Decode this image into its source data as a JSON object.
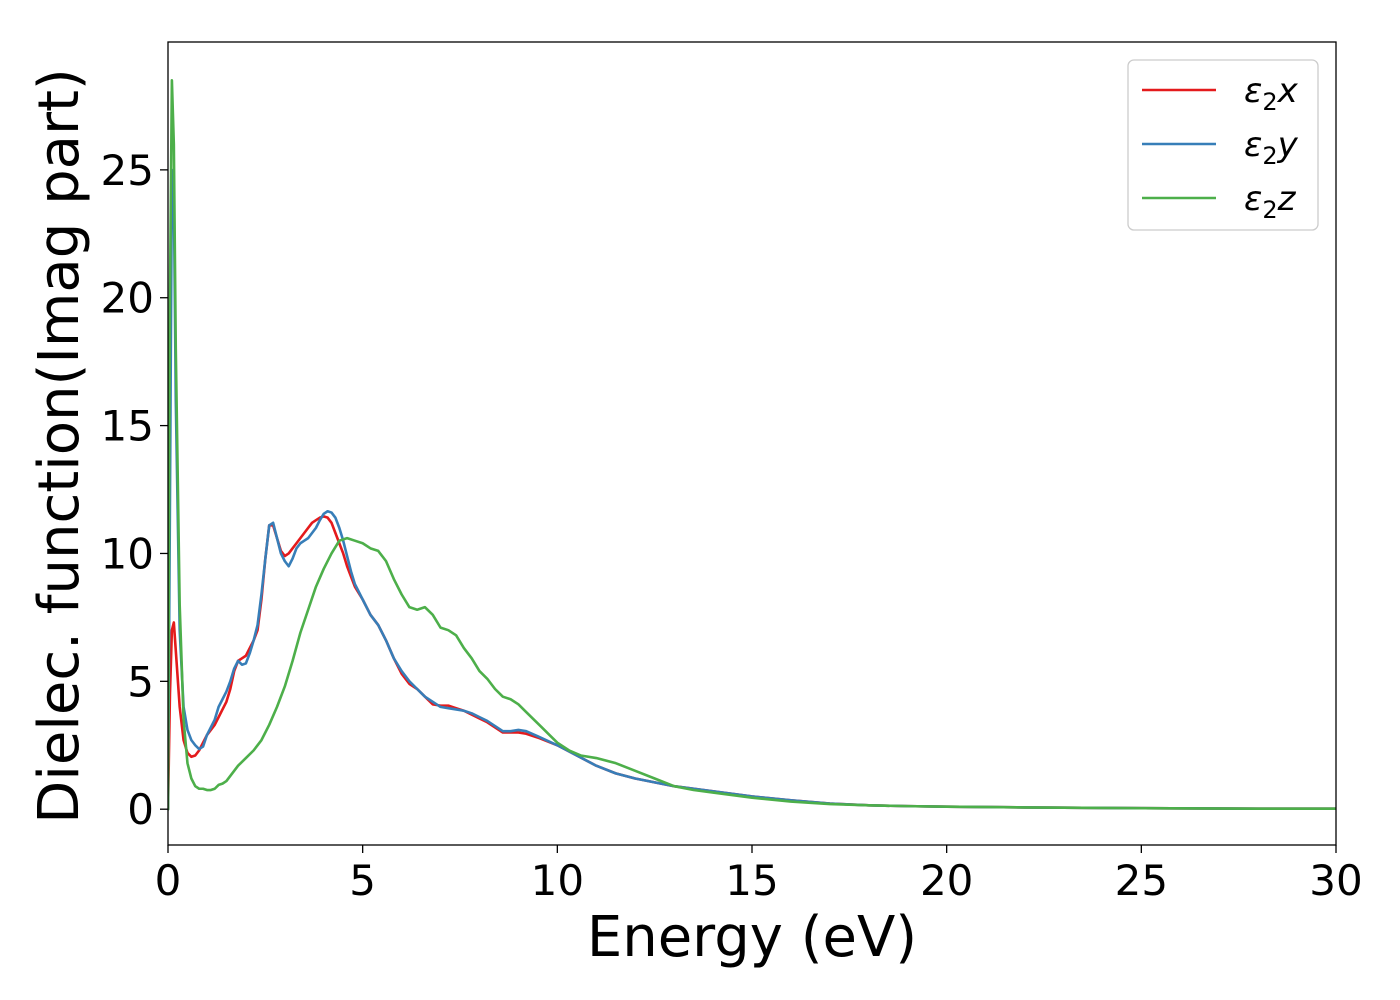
{
  "chart_data": {
    "type": "line",
    "title": "",
    "xlabel": "Energy (eV)",
    "ylabel": "Dielec. function(Imag part)",
    "xlim": [
      0,
      30
    ],
    "ylim": [
      -1.4,
      30
    ],
    "xticks": [
      0,
      5,
      10,
      15,
      20,
      25,
      30
    ],
    "xtick_labels": [
      "0",
      "5",
      "10",
      "15",
      "20",
      "25",
      "30"
    ],
    "yticks": [
      0,
      5,
      10,
      15,
      20,
      25
    ],
    "ytick_labels": [
      "0",
      "5",
      "10",
      "15",
      "20",
      "25"
    ],
    "grid": false,
    "legend_position": "top-right",
    "series": [
      {
        "name": "ε2x",
        "name_base": "ε",
        "name_sub": "2",
        "name_suffix": "x",
        "color": "#e41a1c",
        "x": [
          0.0,
          0.05,
          0.1,
          0.15,
          0.2,
          0.3,
          0.4,
          0.5,
          0.6,
          0.7,
          0.8,
          0.9,
          1.0,
          1.1,
          1.2,
          1.3,
          1.4,
          1.5,
          1.6,
          1.7,
          1.8,
          1.9,
          2.0,
          2.1,
          2.2,
          2.3,
          2.4,
          2.5,
          2.6,
          2.7,
          2.8,
          2.9,
          3.0,
          3.1,
          3.2,
          3.3,
          3.4,
          3.5,
          3.6,
          3.7,
          3.8,
          3.9,
          4.0,
          4.1,
          4.2,
          4.3,
          4.4,
          4.5,
          4.6,
          4.7,
          4.8,
          5.0,
          5.2,
          5.4,
          5.6,
          5.8,
          6.0,
          6.2,
          6.4,
          6.6,
          6.8,
          7.0,
          7.2,
          7.4,
          7.6,
          7.8,
          8.0,
          8.2,
          8.4,
          8.6,
          8.8,
          9.0,
          9.2,
          9.5,
          10.0,
          10.5,
          11.0,
          11.5,
          12.0,
          12.5,
          13.0,
          14.0,
          15.0,
          16.0,
          17.0,
          18.0,
          19.0,
          20.0,
          22.0,
          25.0,
          28.0,
          30.0
        ],
        "y": [
          0.0,
          4.5,
          7.0,
          7.3,
          6.2,
          4.0,
          2.7,
          2.2,
          2.05,
          2.1,
          2.3,
          2.6,
          2.9,
          3.1,
          3.3,
          3.6,
          3.9,
          4.2,
          4.7,
          5.4,
          5.8,
          5.9,
          6.0,
          6.3,
          6.6,
          7.0,
          8.2,
          9.8,
          11.1,
          11.1,
          10.6,
          10.1,
          9.9,
          10.0,
          10.2,
          10.4,
          10.6,
          10.8,
          11.0,
          11.2,
          11.3,
          11.4,
          11.45,
          11.4,
          11.2,
          10.8,
          10.4,
          10.0,
          9.5,
          9.1,
          8.7,
          8.2,
          7.6,
          7.2,
          6.6,
          5.9,
          5.3,
          4.9,
          4.7,
          4.4,
          4.1,
          4.05,
          4.05,
          3.95,
          3.85,
          3.7,
          3.55,
          3.4,
          3.2,
          3.0,
          3.0,
          3.0,
          2.95,
          2.8,
          2.5,
          2.1,
          1.7,
          1.4,
          1.2,
          1.05,
          0.9,
          0.7,
          0.5,
          0.35,
          0.22,
          0.15,
          0.12,
          0.1,
          0.07,
          0.04,
          0.02,
          0.02
        ]
      },
      {
        "name": "ε2y",
        "name_base": "ε",
        "name_sub": "2",
        "name_suffix": "y",
        "color": "#377eb8",
        "x": [
          0.0,
          0.05,
          0.1,
          0.15,
          0.2,
          0.3,
          0.4,
          0.5,
          0.6,
          0.7,
          0.8,
          0.9,
          1.0,
          1.1,
          1.2,
          1.3,
          1.4,
          1.5,
          1.6,
          1.7,
          1.8,
          1.9,
          2.0,
          2.1,
          2.2,
          2.3,
          2.4,
          2.5,
          2.6,
          2.7,
          2.8,
          2.9,
          3.0,
          3.1,
          3.2,
          3.3,
          3.4,
          3.5,
          3.6,
          3.7,
          3.8,
          3.9,
          4.0,
          4.1,
          4.2,
          4.3,
          4.4,
          4.5,
          4.6,
          4.7,
          4.8,
          5.0,
          5.2,
          5.4,
          5.6,
          5.8,
          6.0,
          6.2,
          6.4,
          6.6,
          6.8,
          7.0,
          7.2,
          7.4,
          7.6,
          7.8,
          8.0,
          8.2,
          8.4,
          8.6,
          8.8,
          9.0,
          9.2,
          9.5,
          10.0,
          10.5,
          11.0,
          11.5,
          12.0,
          12.5,
          13.0,
          14.0,
          15.0,
          16.0,
          17.0,
          18.0,
          19.0,
          20.0,
          22.0,
          25.0,
          28.0,
          30.0
        ],
        "y": [
          0.0,
          12.0,
          25.0,
          24.0,
          16.0,
          7.0,
          4.0,
          3.1,
          2.7,
          2.5,
          2.35,
          2.45,
          2.9,
          3.2,
          3.5,
          4.0,
          4.3,
          4.6,
          5.0,
          5.5,
          5.8,
          5.65,
          5.7,
          6.1,
          6.6,
          7.2,
          8.4,
          9.8,
          11.1,
          11.2,
          10.6,
          10.0,
          9.7,
          9.5,
          9.8,
          10.2,
          10.4,
          10.5,
          10.6,
          10.8,
          11.0,
          11.3,
          11.55,
          11.65,
          11.6,
          11.4,
          11.0,
          10.5,
          9.9,
          9.3,
          8.8,
          8.2,
          7.6,
          7.2,
          6.6,
          5.9,
          5.4,
          5.0,
          4.7,
          4.4,
          4.2,
          4.0,
          3.95,
          3.9,
          3.85,
          3.75,
          3.6,
          3.45,
          3.25,
          3.05,
          3.05,
          3.1,
          3.05,
          2.85,
          2.5,
          2.1,
          1.7,
          1.4,
          1.2,
          1.05,
          0.9,
          0.7,
          0.5,
          0.35,
          0.22,
          0.15,
          0.12,
          0.1,
          0.07,
          0.04,
          0.02,
          0.02
        ]
      },
      {
        "name": "ε2z",
        "name_base": "ε",
        "name_sub": "2",
        "name_suffix": "z",
        "color": "#4daf4a",
        "x": [
          0.0,
          0.05,
          0.1,
          0.15,
          0.2,
          0.3,
          0.4,
          0.5,
          0.6,
          0.7,
          0.8,
          0.9,
          1.0,
          1.1,
          1.2,
          1.3,
          1.4,
          1.5,
          1.6,
          1.7,
          1.8,
          2.0,
          2.2,
          2.4,
          2.6,
          2.8,
          3.0,
          3.2,
          3.4,
          3.6,
          3.8,
          4.0,
          4.2,
          4.4,
          4.6,
          4.8,
          5.0,
          5.2,
          5.4,
          5.6,
          5.8,
          6.0,
          6.2,
          6.4,
          6.6,
          6.8,
          7.0,
          7.2,
          7.4,
          7.6,
          7.8,
          8.0,
          8.2,
          8.4,
          8.6,
          8.8,
          9.0,
          9.2,
          9.4,
          9.6,
          9.8,
          10.0,
          10.3,
          10.6,
          11.0,
          11.5,
          12.0,
          12.5,
          13.0,
          13.5,
          14.0,
          15.0,
          16.0,
          17.0,
          18.0,
          19.0,
          20.0,
          22.0,
          25.0,
          28.0,
          30.0
        ],
        "y": [
          0.0,
          20.0,
          28.5,
          26.0,
          18.0,
          8.0,
          3.5,
          1.8,
          1.2,
          0.9,
          0.8,
          0.8,
          0.75,
          0.75,
          0.8,
          0.95,
          1.0,
          1.1,
          1.3,
          1.5,
          1.7,
          2.0,
          2.3,
          2.7,
          3.3,
          4.0,
          4.8,
          5.8,
          6.9,
          7.8,
          8.7,
          9.4,
          10.0,
          10.5,
          10.6,
          10.5,
          10.4,
          10.2,
          10.1,
          9.7,
          9.0,
          8.4,
          7.9,
          7.8,
          7.9,
          7.6,
          7.1,
          7.0,
          6.8,
          6.3,
          5.9,
          5.4,
          5.1,
          4.7,
          4.4,
          4.3,
          4.1,
          3.8,
          3.5,
          3.2,
          2.9,
          2.6,
          2.3,
          2.1,
          2.0,
          1.8,
          1.5,
          1.2,
          0.9,
          0.75,
          0.65,
          0.45,
          0.3,
          0.2,
          0.15,
          0.12,
          0.1,
          0.07,
          0.04,
          0.02,
          0.02
        ]
      }
    ]
  }
}
